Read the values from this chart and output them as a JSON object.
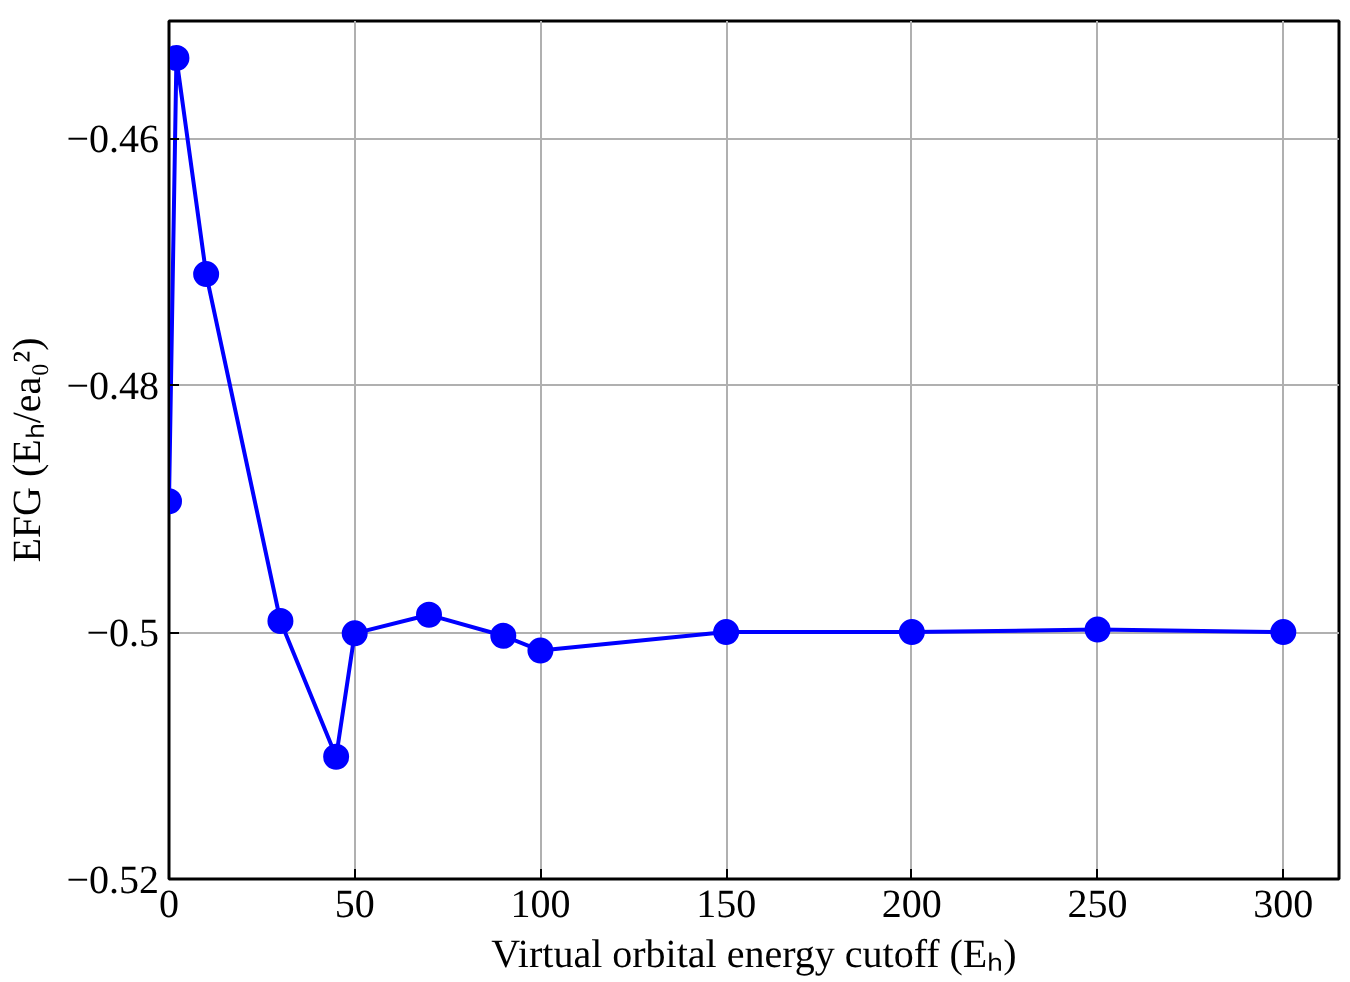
{
  "chart_data": {
    "type": "line",
    "xlabel": "Virtual orbital energy cutoff (Eₕ)",
    "ylabel": "EFG (Eₕ/ea₀²)",
    "x": [
      0,
      2,
      10,
      30,
      45,
      50,
      70,
      90,
      100,
      150,
      200,
      250,
      300
    ],
    "series": [
      {
        "color": "#0000ff",
        "values": [
          -0.4894,
          -0.4535,
          -0.471,
          -0.4991,
          -0.5101,
          -0.5001,
          -0.4986,
          -0.5003,
          -0.5015,
          -0.5,
          -0.5,
          -0.4998,
          -0.5
        ]
      }
    ],
    "xlim": [
      0,
      315
    ],
    "ylim": [
      -0.52,
      -0.4505
    ],
    "xticks": [
      0,
      50,
      100,
      150,
      200,
      250,
      300
    ],
    "yticks": [
      {
        "value": -0.52,
        "label": "−0.52"
      },
      {
        "value": -0.5,
        "label": "−0.5"
      },
      {
        "value": -0.48,
        "label": "−0.48"
      },
      {
        "value": -0.46,
        "label": "−0.46"
      }
    ],
    "grid": true,
    "marker": "circle",
    "line_style": "solid"
  }
}
